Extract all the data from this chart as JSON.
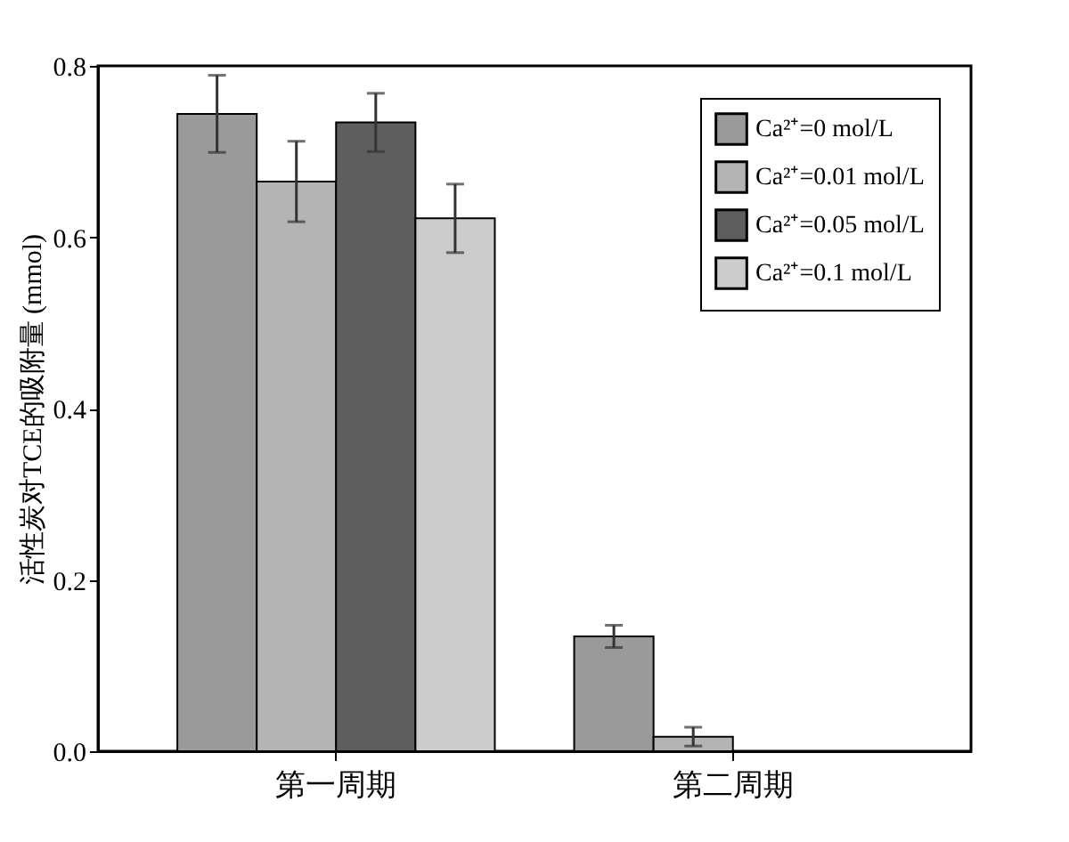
{
  "chart_data": {
    "type": "bar",
    "ylabel": "活性炭对TCE的吸附量 (mmol)",
    "categories": [
      "第一周期",
      "第二周期"
    ],
    "series": [
      {
        "name": "Ca²⁺=0 mol/L",
        "color": "#9a9a9a",
        "values": [
          0.744,
          0.134
        ],
        "errors": [
          0.045,
          0.013
        ]
      },
      {
        "name": "Ca²⁺=0.01 mol/L",
        "color": "#b4b4b4",
        "values": [
          0.665,
          0.017
        ],
        "errors": [
          0.047,
          0.011
        ]
      },
      {
        "name": "Ca²⁺=0.05 mol/L",
        "color": "#5e5e5e",
        "values": [
          0.734,
          null
        ],
        "errors": [
          0.034,
          null
        ]
      },
      {
        "name": "Ca²⁺=0.1 mol/L",
        "color": "#cccccc",
        "values": [
          0.622,
          null
        ],
        "errors": [
          0.04,
          null
        ]
      }
    ],
    "ylim": [
      0,
      0.8
    ],
    "yticks": [
      {
        "value": 0,
        "label": "0.0"
      },
      0.2,
      0.4,
      0.6,
      0.8
    ],
    "grid": false,
    "legend": "top right"
  }
}
